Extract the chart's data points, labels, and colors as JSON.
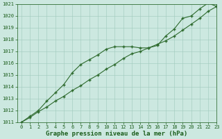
{
  "xlabel": "Graphe pression niveau de la mer (hPa)",
  "x_values": [
    0,
    1,
    2,
    3,
    4,
    5,
    6,
    7,
    8,
    9,
    10,
    11,
    12,
    13,
    14,
    15,
    16,
    17,
    18,
    19,
    20,
    21,
    22,
    23
  ],
  "line1_values": [
    1011.0,
    1011.5,
    1012.0,
    1012.8,
    1013.5,
    1014.2,
    1015.2,
    1015.9,
    1016.3,
    1016.7,
    1017.2,
    1017.4,
    1017.4,
    1017.4,
    1017.3,
    1017.3,
    1017.5,
    1018.3,
    1018.9,
    1019.8,
    1020.0,
    1020.6,
    1021.1,
    1020.8
  ],
  "line2_values": [
    1011.0,
    1011.4,
    1011.9,
    1012.3,
    1012.8,
    1013.2,
    1013.7,
    1014.1,
    1014.6,
    1015.0,
    1015.5,
    1015.9,
    1016.4,
    1016.8,
    1017.0,
    1017.3,
    1017.6,
    1017.9,
    1018.3,
    1018.8,
    1019.3,
    1019.8,
    1020.4,
    1020.8
  ],
  "line_color": "#2d6a2d",
  "bg_color": "#cce8e0",
  "grid_color": "#9fc8bc",
  "ylim": [
    1011,
    1021
  ],
  "yticks": [
    1011,
    1012,
    1013,
    1014,
    1015,
    1016,
    1017,
    1018,
    1019,
    1020,
    1021
  ],
  "xlim": [
    -0.5,
    23
  ],
  "xticks": [
    0,
    1,
    2,
    3,
    4,
    5,
    6,
    7,
    8,
    9,
    10,
    11,
    12,
    13,
    14,
    15,
    16,
    17,
    18,
    19,
    20,
    21,
    22,
    23
  ],
  "marker": "+",
  "marker_size": 3.5,
  "linewidth": 0.8,
  "xlabel_fontsize": 6.5,
  "tick_fontsize": 5.0,
  "xlabel_color": "#1a5c1a",
  "tick_color": "#1a5c1a",
  "axis_color": "#1a5c1a"
}
